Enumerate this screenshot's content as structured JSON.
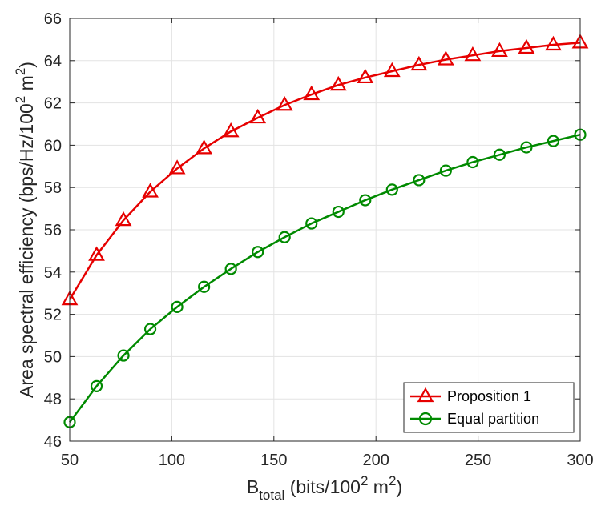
{
  "chart_data": {
    "type": "line",
    "xlabel": {
      "main": "B",
      "sub": "total",
      "rest": " (bits/100",
      "sup1": "2",
      "tail": " m",
      "sup2": "2",
      "close": ")"
    },
    "ylabel": {
      "main": "Area spectral efficiency (bps/Hz/100",
      "sup1": "2",
      "tail": " m",
      "sup2": "2",
      "close": ")"
    },
    "xlim": [
      50,
      300
    ],
    "ylim": [
      46,
      66
    ],
    "xticks": [
      50,
      100,
      150,
      200,
      250,
      300
    ],
    "yticks": [
      46,
      48,
      50,
      52,
      54,
      56,
      58,
      60,
      62,
      64,
      66
    ],
    "grid": true,
    "legend_position": "bottom-right",
    "x": [
      50,
      63.16,
      76.32,
      89.47,
      102.63,
      115.79,
      128.95,
      142.11,
      155.26,
      168.42,
      181.58,
      194.74,
      207.89,
      221.05,
      234.21,
      247.37,
      260.53,
      273.68,
      286.84,
      300
    ],
    "series": [
      {
        "name": "Proposition 1",
        "color": "#e60000",
        "marker": "triangle",
        "values": [
          52.7,
          54.8,
          56.45,
          57.8,
          58.9,
          59.85,
          60.65,
          61.3,
          61.9,
          62.4,
          62.85,
          63.2,
          63.5,
          63.8,
          64.05,
          64.25,
          64.45,
          64.6,
          64.75,
          64.85
        ]
      },
      {
        "name": "Equal partition",
        "color": "#008a00",
        "marker": "circle",
        "values": [
          46.9,
          48.6,
          50.05,
          51.3,
          52.35,
          53.3,
          54.15,
          54.95,
          55.65,
          56.3,
          56.85,
          57.4,
          57.9,
          58.35,
          58.8,
          59.2,
          59.55,
          59.9,
          60.2,
          60.5
        ]
      }
    ]
  }
}
